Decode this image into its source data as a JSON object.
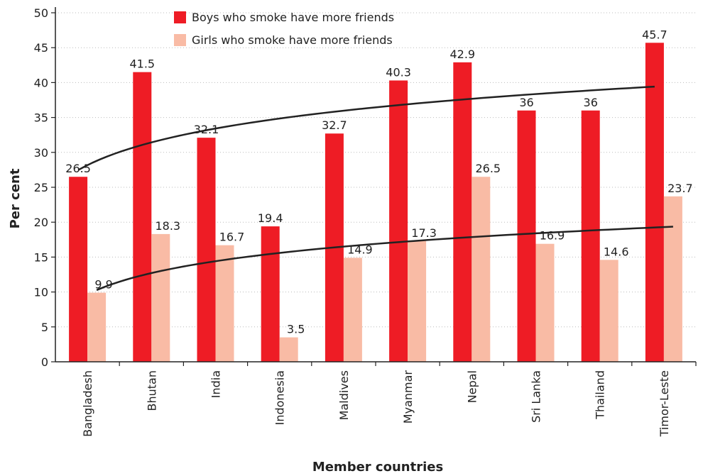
{
  "chart_data": {
    "type": "bar",
    "title": "",
    "xlabel": "Member countries",
    "ylabel": "Per cent",
    "ylim": [
      0,
      50
    ],
    "yticks": [
      0,
      5,
      10,
      15,
      20,
      25,
      30,
      35,
      40,
      45,
      50
    ],
    "grid": true,
    "legend_position": "top-center",
    "categories": [
      "Bangladesh",
      "Bhutan",
      "India",
      "Indonesia",
      "Maldives",
      "Myanmar",
      "Nepal",
      "Sri Lanka",
      "Thailand",
      "Timor-Leste"
    ],
    "series": [
      {
        "name": "Boys who smoke have more friends",
        "color": "#ee1c25",
        "values": [
          26.5,
          41.5,
          32.1,
          19.4,
          32.7,
          40.3,
          42.9,
          36,
          36,
          45.7
        ],
        "labels": [
          "26.5",
          "41.5",
          "32.1",
          "19.4",
          "32.7",
          "40.3",
          "42.9",
          "36",
          "36",
          "45.7"
        ],
        "trendline": "logarithmic"
      },
      {
        "name": "Girls who smoke have more friends",
        "color": "#f9bba5",
        "values": [
          9.9,
          18.3,
          16.7,
          3.5,
          14.9,
          17.3,
          26.5,
          16.9,
          14.6,
          23.7
        ],
        "labels": [
          "9.9",
          "18.3",
          "16.7",
          "3.5",
          "14.9",
          "17.3",
          "26.5",
          "16.9",
          "14.6",
          "23.7"
        ],
        "trendline": "logarithmic"
      }
    ],
    "trendline_color": "#222222"
  }
}
